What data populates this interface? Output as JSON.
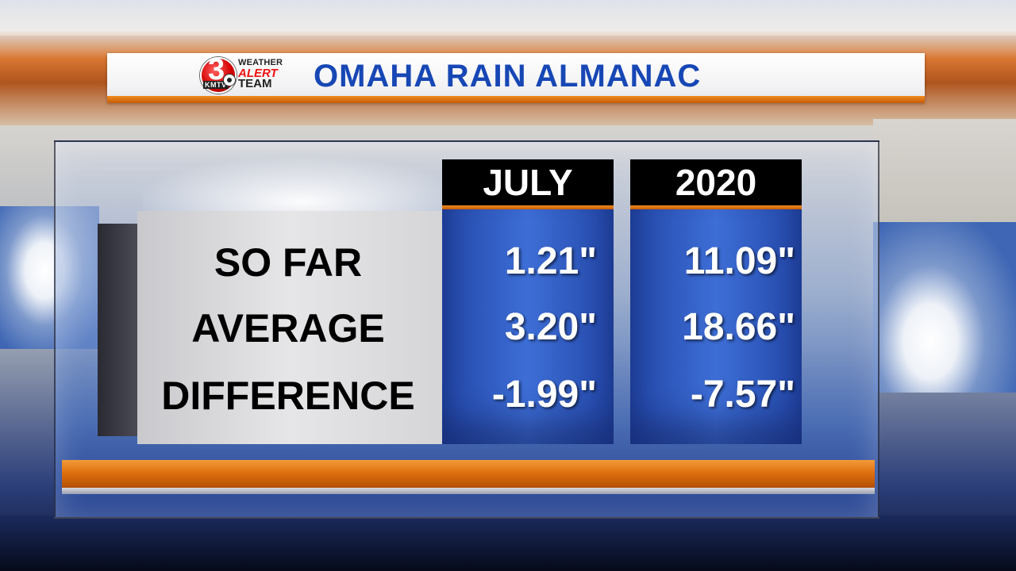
{
  "header": {
    "title": "OMAHA RAIN ALMANAC",
    "logo": {
      "channel_number": "3",
      "station": "KMTV",
      "line1": "WEATHER",
      "line2": "ALERT",
      "line3": "TEAM",
      "icon": "cbs-eye-icon"
    }
  },
  "columns": [
    {
      "header": "JULY"
    },
    {
      "header": "2020"
    }
  ],
  "rows": [
    {
      "label": "SO FAR",
      "values": [
        "1.21\"",
        "11.09\""
      ]
    },
    {
      "label": "AVERAGE",
      "values": [
        "3.20\"",
        "18.66\""
      ]
    },
    {
      "label": "DIFFERENCE",
      "values": [
        "-1.99\"",
        "-7.57\""
      ]
    }
  ],
  "colors": {
    "title_blue": "#1747b5",
    "accent_orange": "#e0700e",
    "column_blue": "#3d6ed6"
  }
}
